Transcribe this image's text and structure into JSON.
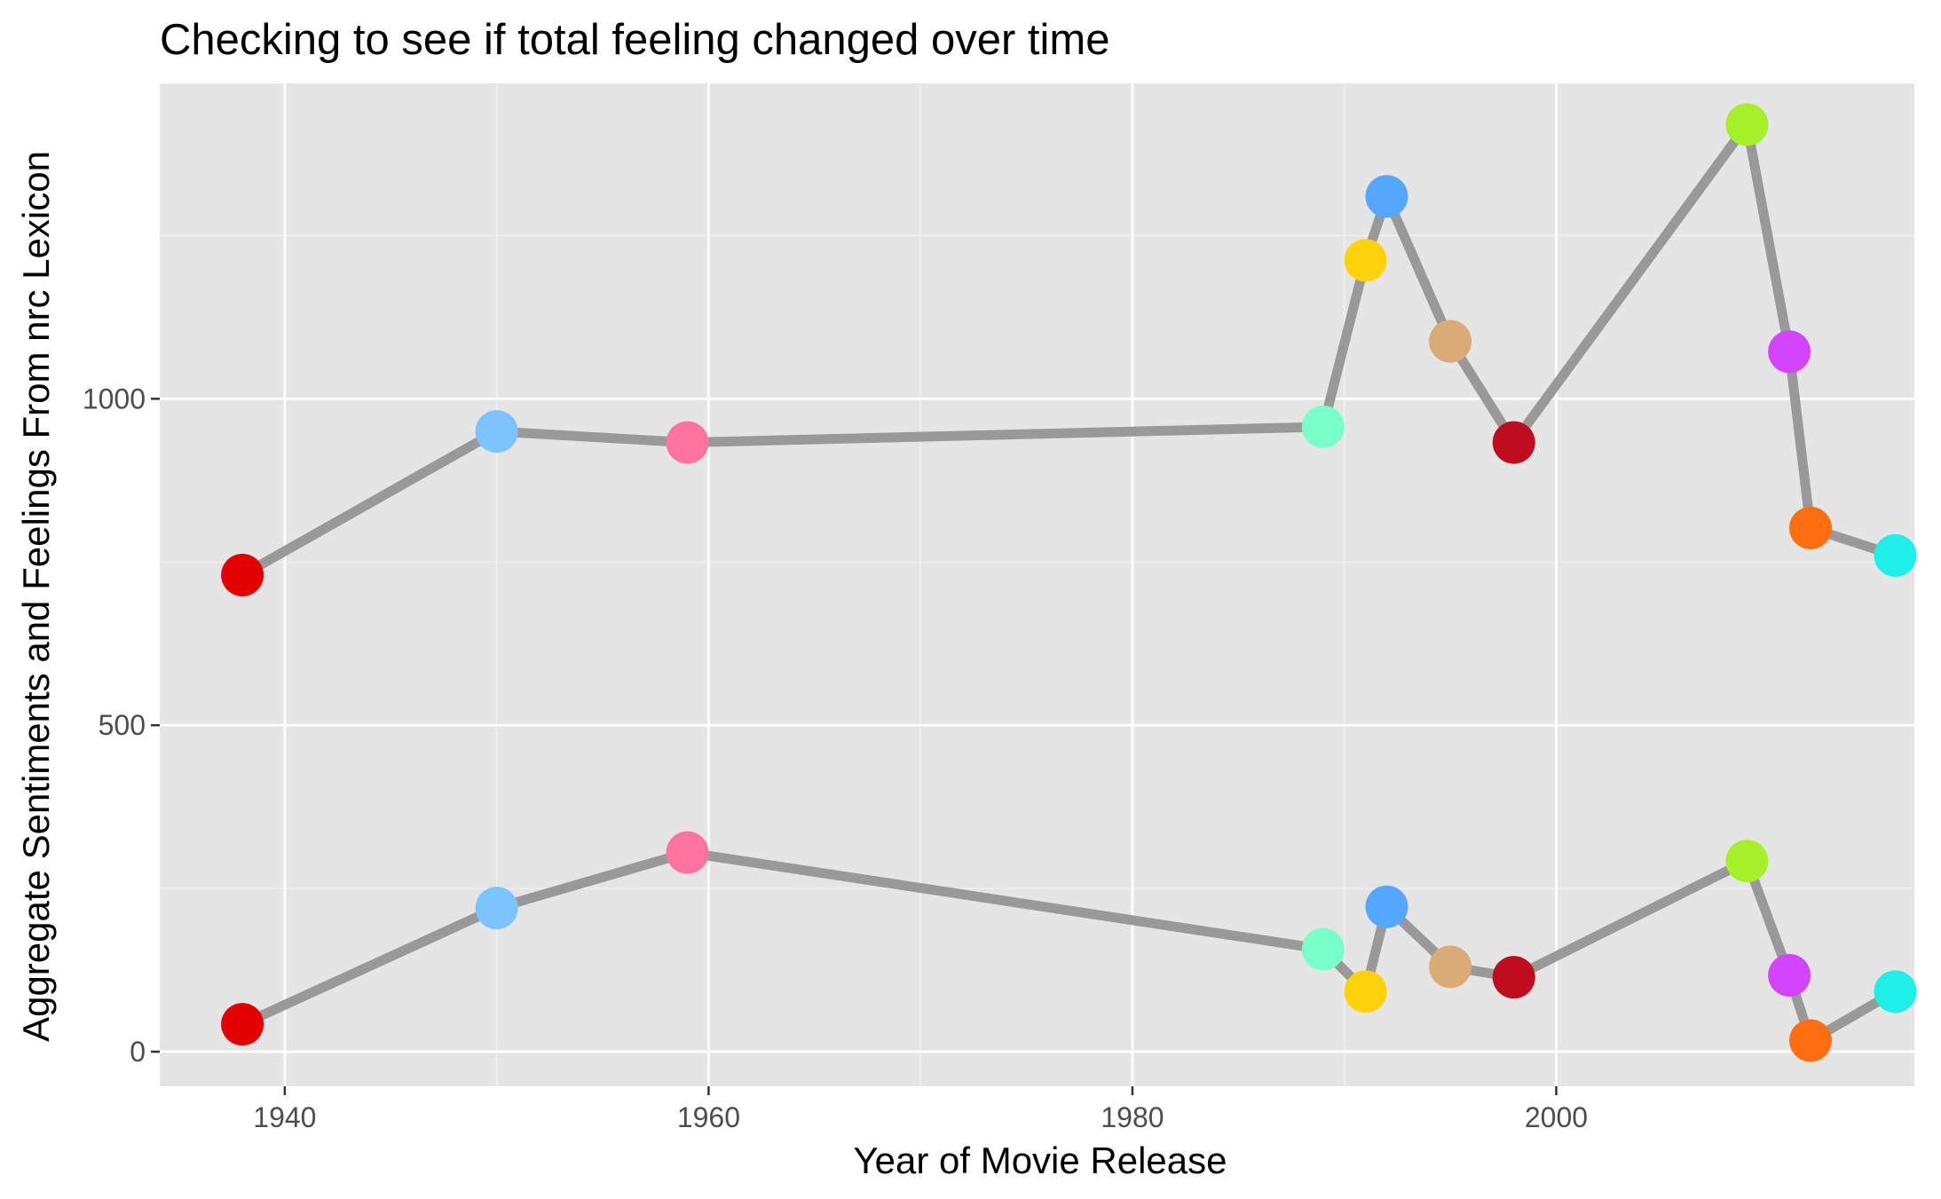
{
  "chart_data": {
    "type": "line",
    "title": "Checking to see if total feeling changed over time",
    "xlabel": "Year of Movie Release",
    "ylabel": "Aggregate Sentiments and Feelings From nrc Lexicon",
    "xlim": [
      1934.1,
      2016.9
    ],
    "ylim": [
      -53,
      1483
    ],
    "x_ticks": [
      1940,
      1960,
      1980,
      2000
    ],
    "x_tick_labels": [
      "1940",
      "1960",
      "1980",
      "2000"
    ],
    "y_ticks": [
      0,
      500,
      1000
    ],
    "y_tick_labels": [
      "0",
      "500",
      "1000"
    ],
    "grid": true,
    "legend": "none",
    "line_color": "#999999",
    "panel_background": "#e5e5e5",
    "point_colors": [
      "#e30000",
      "#7cc4ff",
      "#ff73a0",
      "#79ffca",
      "#ffd20b",
      "#56a7ff",
      "#d9ab76",
      "#c00c20",
      "#a6f02a",
      "#d443ff",
      "#ff6e0f",
      "#1eefe8"
    ],
    "x": [
      1938,
      1950,
      1959,
      1989,
      1991,
      1992,
      1995,
      1998,
      2009,
      2011,
      2012,
      2016
    ],
    "series": [
      {
        "values": [
          730,
          950,
          933,
          957,
          1212,
          1310,
          1088,
          933,
          1420,
          1072,
          802,
          760
        ]
      },
      {
        "values": [
          42,
          220,
          305,
          157,
          92,
          222,
          130,
          114,
          292,
          117,
          17,
          92
        ]
      }
    ]
  }
}
